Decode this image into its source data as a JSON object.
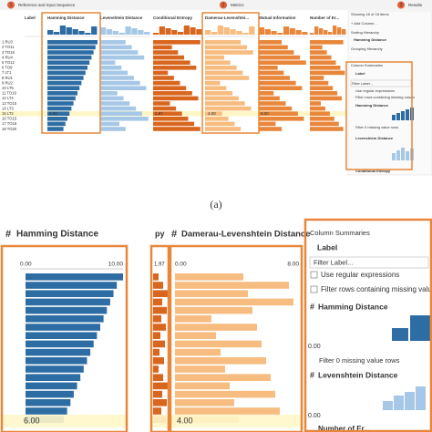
{
  "header": {
    "steps": [
      {
        "number": "1",
        "label": "Reference and Input Sequence"
      },
      {
        "number": "2",
        "label": "Metrics"
      },
      {
        "number": "3",
        "label": "Results"
      }
    ]
  },
  "overview": {
    "columns": [
      "Label",
      "Hamming Distance",
      "Levenshtein Distance",
      "Conditional Entropy",
      "Damerau-Levenshtei...",
      "Mutual Information",
      "Number of Er..."
    ],
    "rows": [
      "1 RU3",
      "2 TO11",
      "3 TO18",
      "4 RU4",
      "5 TO12",
      "6 TO9",
      "7 LT1",
      "8 RU1",
      "9 RU2",
      "10 LT5",
      "11 TO19",
      "12 LT4",
      "13 TO10",
      "14 LT3",
      "15 LT2",
      "16 TO15",
      "17 TO16",
      "18 TO20"
    ],
    "highlight_labels": [
      "6.00",
      "1.97",
      "4.00",
      "8.00"
    ],
    "side_panel": [
      "Showing 18 of 18 items",
      "+ Add Column...",
      "Sorting Hierarchy",
      "Hamming Distance",
      "Grouping Hierarchy",
      "Column Summaries",
      "Label",
      "Filter Label...",
      "Use regular expressions",
      "Filter rows containing missing values",
      "Hamming Distance",
      "Filter 0 missing value rows",
      "Levenshtein Distance",
      "Conditional Entropy"
    ]
  },
  "caption": "(a)",
  "zoom": {
    "hamming": {
      "title": "Hamming Distance",
      "axis_min": "0.00",
      "axis_max": "10.00",
      "highlight": "6.00"
    },
    "damerau": {
      "prev_title": "py",
      "prev_value": "1.97",
      "title": "Damerau-Levenshtein Distance",
      "axis_min": "0.00",
      "axis_max": "8.00",
      "highlight": "4.00"
    },
    "summaries": {
      "title": "Column Summaries",
      "label": "Label",
      "filter": "Filter Label...",
      "regex": "Use regular expressions",
      "missing": "Filter rows containing missing values",
      "col1": "Hamming Distance",
      "col1_min": "0.00",
      "col1_filter": "Filter 0 missing value rows",
      "col2": "Levenshtein Distance",
      "col2_min": "0.00",
      "col3": "Number of Er..."
    }
  }
}
